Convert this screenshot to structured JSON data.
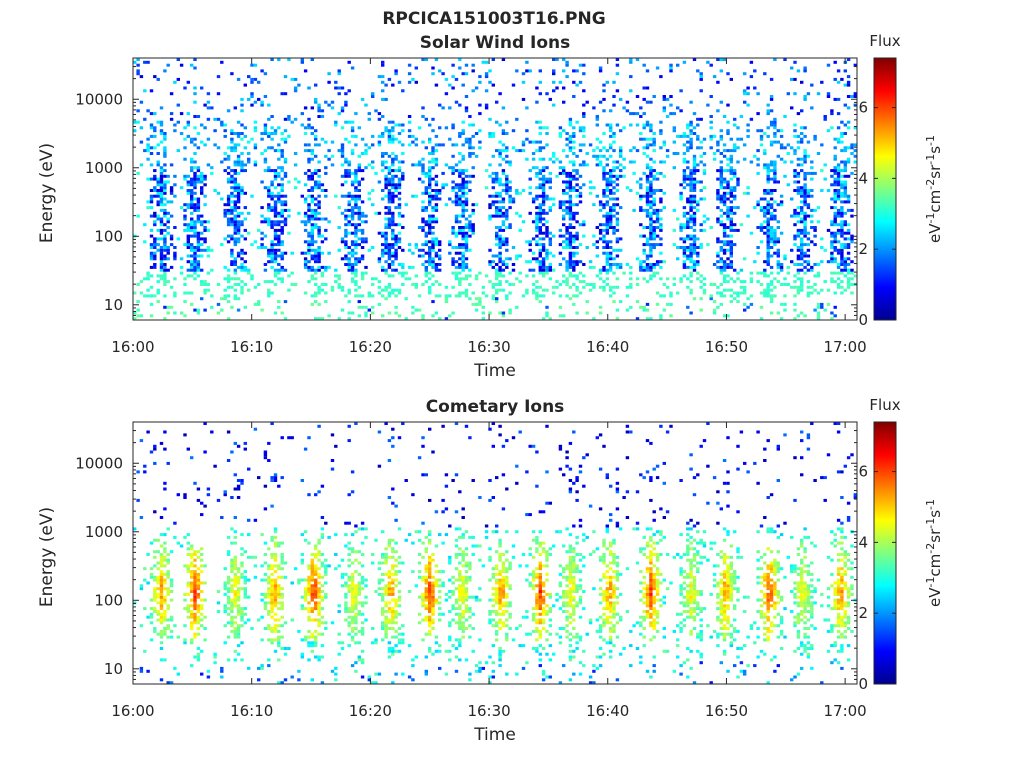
{
  "figure": {
    "title": "RPCICA151003T16.PNG"
  },
  "colorscale": [
    "#00008f",
    "#0000ff",
    "#0080ff",
    "#00ffff",
    "#80ff80",
    "#ffff00",
    "#ff8000",
    "#ff0000",
    "#800000"
  ],
  "chart_data": [
    {
      "type": "heatmap",
      "title": "Solar Wind Ions",
      "xlabel": "Time",
      "ylabel": "Energy (eV)",
      "xticks": [
        "16:00",
        "16:10",
        "16:20",
        "16:30",
        "16:40",
        "16:50",
        "17:00"
      ],
      "yticks": [
        "10",
        "100",
        "1000",
        "10000"
      ],
      "xlim": [
        "16:00",
        "17:01"
      ],
      "ylim": [
        6,
        40000
      ],
      "yscale": "log",
      "colorbar": {
        "title": "Flux",
        "label": "eV-1cm-2sr-1s-1",
        "ticks": [
          "0",
          "2",
          "4",
          "6"
        ],
        "range": [
          0,
          7.4
        ]
      },
      "peak_minutes": [
        2.3,
        5.1,
        8.5,
        11.8,
        15.1,
        18.5,
        21.6,
        24.9,
        27.6,
        30.9,
        34.2,
        36.8,
        40.0,
        43.5,
        46.9,
        49.8,
        53.5,
        56.3,
        59.5
      ],
      "peak_energy_range_eV": [
        30,
        900
      ],
      "flux_range_in_bursts": [
        0.6,
        2.8
      ],
      "background_flux_range": [
        2.3,
        3.5
      ]
    },
    {
      "type": "heatmap",
      "title": "Cometary Ions",
      "xlabel": "Time",
      "ylabel": "Energy (eV)",
      "xticks": [
        "16:00",
        "16:10",
        "16:20",
        "16:30",
        "16:40",
        "16:50",
        "17:00"
      ],
      "yticks": [
        "10",
        "100",
        "1000",
        "10000"
      ],
      "xlim": [
        "16:00",
        "17:01"
      ],
      "ylim": [
        6,
        40000
      ],
      "yscale": "log",
      "colorbar": {
        "title": "Flux",
        "label": "eV-1cm-2sr-1s-1",
        "ticks": [
          "0",
          "2",
          "4",
          "6"
        ],
        "range": [
          0,
          7.4
        ]
      },
      "peak_minutes": [
        2.3,
        5.1,
        8.5,
        11.8,
        15.1,
        18.5,
        21.6,
        24.9,
        27.6,
        30.9,
        34.2,
        36.8,
        40.0,
        43.5,
        46.9,
        49.8,
        53.5,
        56.3,
        59.5
      ],
      "peak_energy_range_eV": [
        30,
        900
      ],
      "flux_range_in_bursts": [
        2.5,
        6.5
      ],
      "background_flux_range": [
        0.5,
        3.5
      ]
    }
  ]
}
